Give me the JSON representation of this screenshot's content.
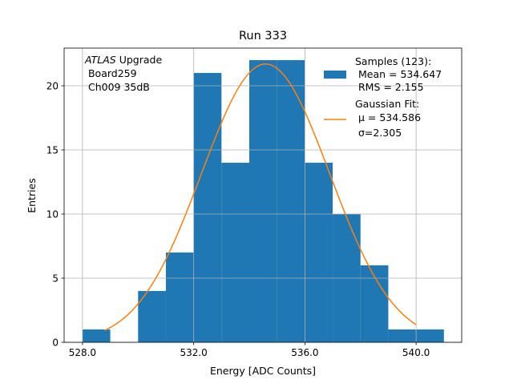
{
  "chart_data": {
    "type": "bar",
    "title": "Run 333",
    "xlabel": "Energy [ADC Counts]",
    "ylabel": "Entries",
    "xlim": [
      527.34,
      541.64
    ],
    "ylim": [
      0,
      22.94
    ],
    "grid": true,
    "bin_edges": [
      528,
      529,
      530,
      531,
      532,
      533,
      534,
      535,
      536,
      537,
      538,
      539,
      540,
      541
    ],
    "values": [
      1,
      0,
      4,
      7,
      21,
      14,
      22,
      22,
      14,
      10,
      6,
      1,
      1
    ],
    "x_ticks": [
      528,
      532,
      536,
      540
    ],
    "x_tick_labels": [
      "528.0",
      "532.0",
      "536.0",
      "540.0"
    ],
    "y_ticks": [
      0,
      5,
      10,
      15,
      20
    ],
    "y_tick_labels": [
      "0",
      "5",
      "10",
      "15",
      "20"
    ],
    "fit": {
      "type": "gaussian",
      "mu": 534.586,
      "sigma": 2.305,
      "amplitude": 21.7,
      "x_range": [
        528.8,
        540.0
      ]
    },
    "colors": {
      "hist": "#1f77b4",
      "fit": "#ff7f0e",
      "grid": "#b0b0b0"
    },
    "annotation": {
      "atlas": "ATLAS",
      "line1_rest": " Upgrade",
      "line2": " Board259",
      "line3": " Ch009 35dB"
    },
    "legend": {
      "placement": "top-right",
      "hist_lines": [
        "Samples (123):",
        " Mean = 534.647",
        " RMS = 2.155"
      ],
      "fit_lines": [
        "Gaussian Fit:",
        " μ = 534.586",
        " σ=2.305"
      ]
    }
  }
}
